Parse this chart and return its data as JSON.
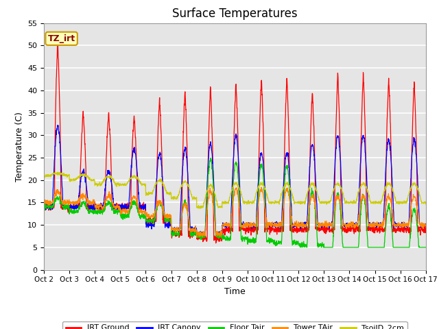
{
  "title": "Surface Temperatures",
  "xlabel": "Time",
  "ylabel": "Temperature (C)",
  "ylim": [
    0,
    55
  ],
  "yticks": [
    0,
    5,
    10,
    15,
    20,
    25,
    30,
    35,
    40,
    45,
    50,
    55
  ],
  "xtick_labels": [
    "Oct 2",
    "Oct 3",
    "Oct 4",
    "Oct 5",
    "Oct 6",
    "Oct 7",
    "Oct 8",
    "Oct 9",
    "Oct 10",
    "Oct 11",
    "Oct 12",
    "Oct 13",
    "Oct 14",
    "Oct 15",
    "Oct 16",
    "Oct 17"
  ],
  "annotation_text": "TZ_irt",
  "series_colors": {
    "IRT Ground": "#ff0000",
    "IRT Canopy": "#0000ff",
    "Floor Tair": "#00cc00",
    "Tower TAir": "#ff8800",
    "TsoilD_2cm": "#cccc00"
  },
  "background_color": "#e5e5e5",
  "grid_color": "#ffffff",
  "n_days": 15,
  "title_fontsize": 12
}
